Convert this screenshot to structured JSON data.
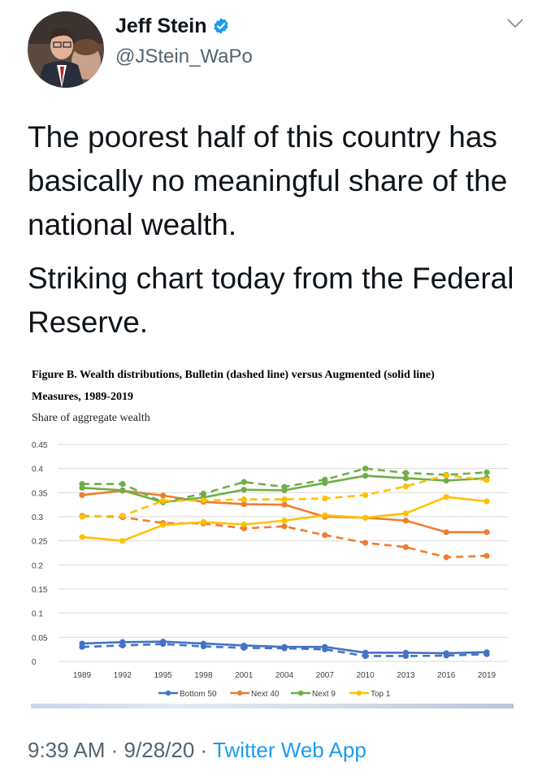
{
  "user": {
    "display_name": "Jeff Stein",
    "handle": "@JStein_WaPo",
    "verified": true,
    "avatar_icon": "profile-photo"
  },
  "tweet": {
    "paragraph1": "The poorest half of this country has basically no meaningful share of the national wealth.",
    "paragraph2": "Striking chart today from the Federal Reserve.",
    "time": "9:39 AM",
    "date": "9/28/20",
    "source": "Twitter Web App",
    "separator": "·"
  },
  "figure": {
    "title_line1": "Figure B. Wealth distributions, Bulletin (dashed line) versus Augmented (solid line)",
    "title_line2": "Measures, 1989-2019",
    "subtitle": "Share of aggregate wealth"
  },
  "chart_data": {
    "type": "line",
    "x": [
      "1989",
      "1992",
      "1995",
      "1998",
      "2001",
      "2004",
      "2007",
      "2010",
      "2013",
      "2016",
      "2019"
    ],
    "ylim": [
      0,
      0.45
    ],
    "yticks": [
      "0",
      "0.05",
      "0.1",
      "0.15",
      "0.2",
      "0.25",
      "0.3",
      "0.35",
      "0.4",
      "0.45"
    ],
    "grid": true,
    "legend_position": "bottom",
    "series": [
      {
        "name": "Bottom 50",
        "color": "#4472c4",
        "augmented": [
          0.037,
          0.04,
          0.041,
          0.037,
          0.033,
          0.03,
          0.03,
          0.018,
          0.018,
          0.017,
          0.019
        ],
        "bulletin": [
          0.03,
          0.033,
          0.036,
          0.031,
          0.028,
          0.027,
          0.025,
          0.011,
          0.011,
          0.012,
          0.015
        ]
      },
      {
        "name": "Next 40",
        "color": "#ed7d31",
        "augmented": [
          0.345,
          0.354,
          0.344,
          0.331,
          0.326,
          0.325,
          0.3,
          0.298,
          0.292,
          0.268,
          0.268
        ],
        "bulletin": [
          0.302,
          0.299,
          0.287,
          0.286,
          0.276,
          0.28,
          0.262,
          0.246,
          0.237,
          0.216,
          0.219
        ]
      },
      {
        "name": "Next 9",
        "color": "#70ad47",
        "augmented": [
          0.36,
          0.355,
          0.33,
          0.34,
          0.356,
          0.355,
          0.37,
          0.385,
          0.38,
          0.375,
          0.38
        ],
        "bulletin": [
          0.368,
          0.368,
          0.33,
          0.348,
          0.372,
          0.362,
          0.377,
          0.4,
          0.391,
          0.387,
          0.392
        ]
      },
      {
        "name": "Top 1",
        "color": "#ffc000",
        "augmented": [
          0.258,
          0.25,
          0.283,
          0.289,
          0.284,
          0.292,
          0.303,
          0.298,
          0.307,
          0.341,
          0.332
        ],
        "bulletin": [
          0.3,
          0.302,
          0.333,
          0.334,
          0.336,
          0.336,
          0.338,
          0.345,
          0.363,
          0.386,
          0.376
        ]
      }
    ]
  },
  "icons": {
    "verified": "verified-badge-icon",
    "menu": "chevron-down-icon"
  }
}
